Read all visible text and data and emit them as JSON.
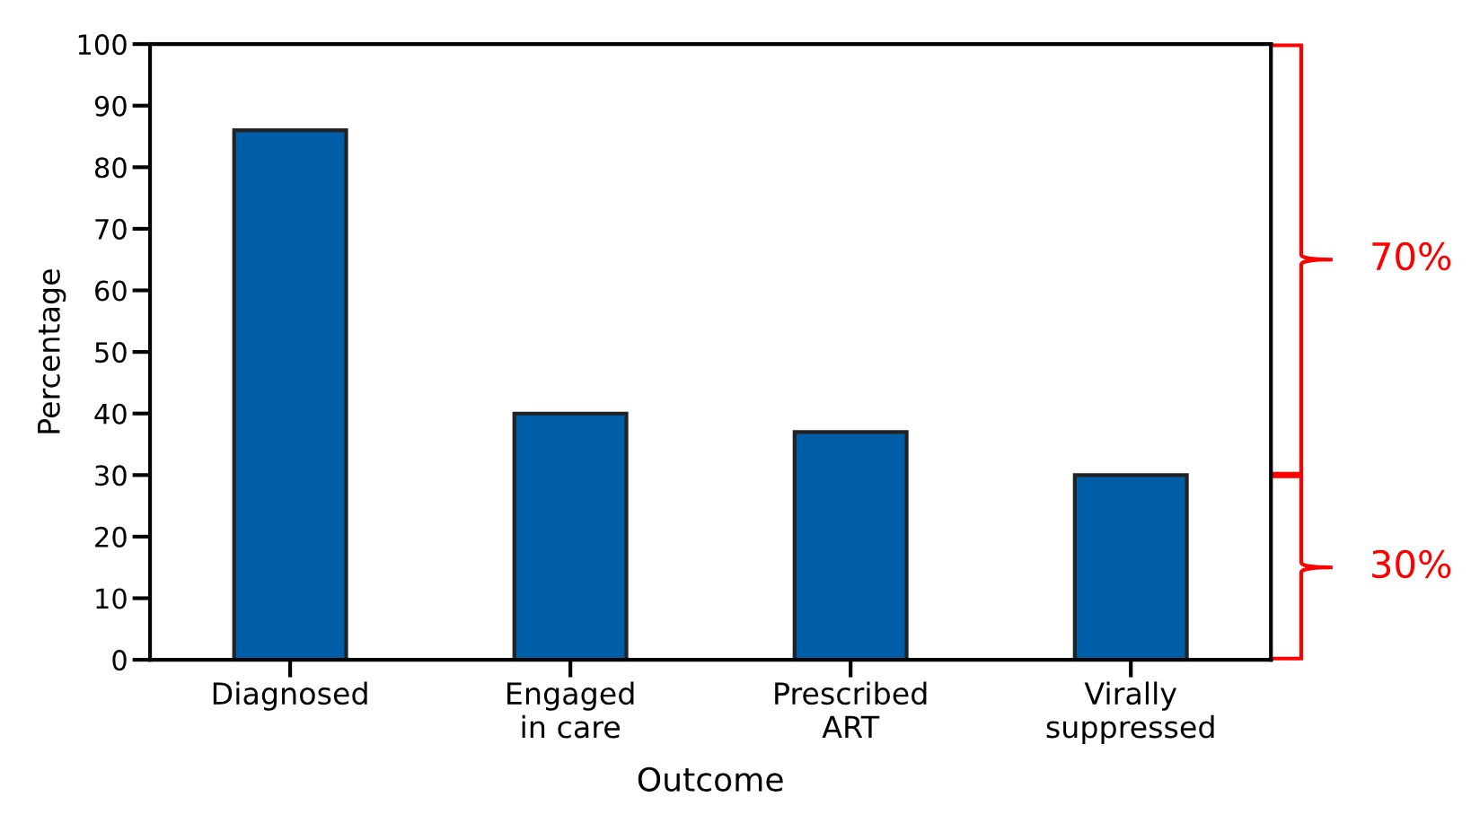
{
  "chart_data": {
    "type": "bar",
    "xlabel": "Outcome",
    "ylabel": "Percentage",
    "categories": [
      "Diagnosed",
      "Engaged\nin care",
      "Prescribed\nART",
      "Virally\nsuppressed"
    ],
    "values": [
      86,
      40,
      37,
      30
    ],
    "color": "#005ea8",
    "ylim": [
      0,
      100
    ],
    "yticks": [
      0,
      10,
      20,
      30,
      40,
      50,
      60,
      70,
      80,
      90,
      100
    ],
    "grid": false,
    "annotations": [
      "70%",
      "30%"
    ]
  }
}
